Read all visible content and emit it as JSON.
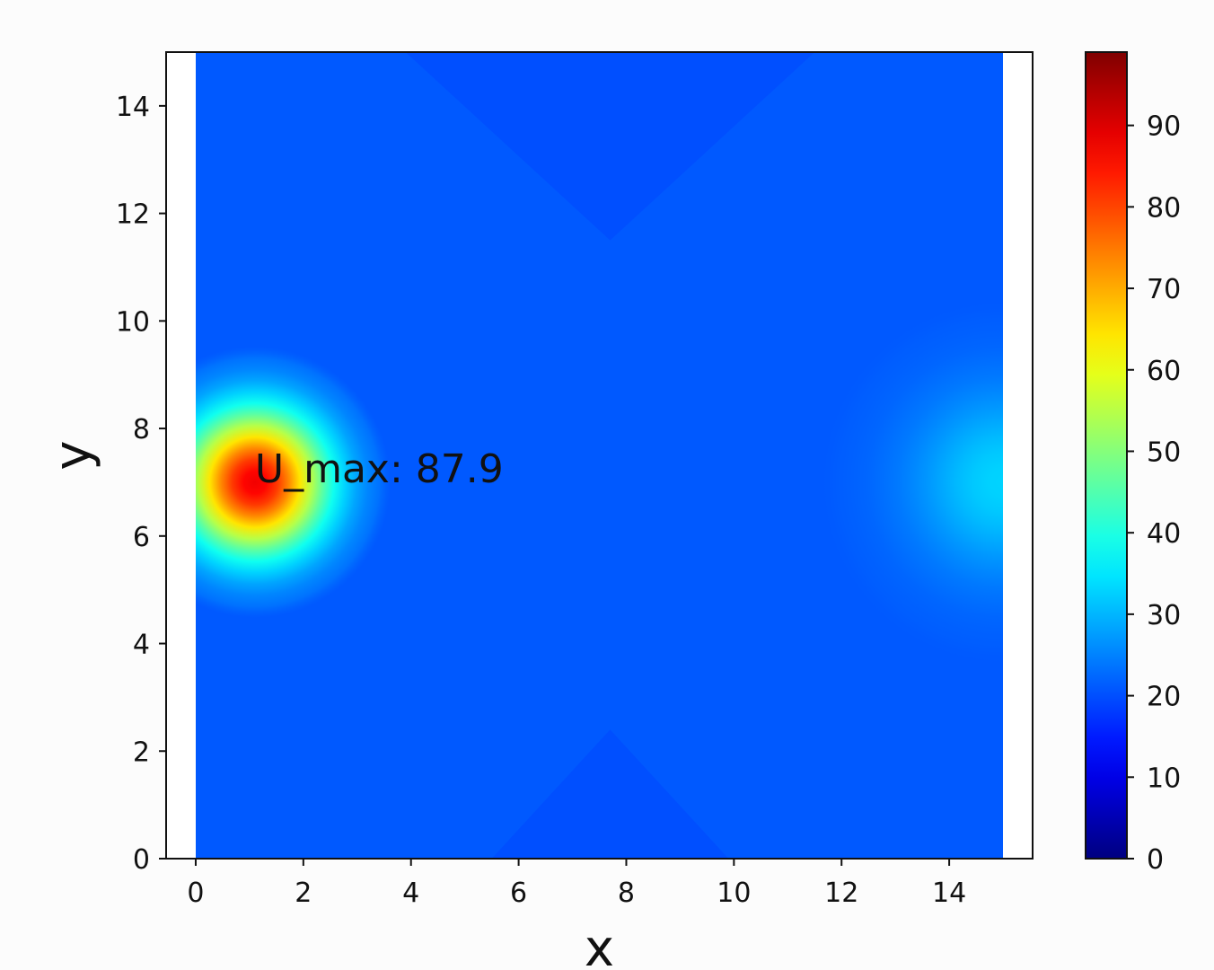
{
  "chart_data": {
    "type": "heatmap",
    "title": "",
    "xlabel": "x",
    "ylabel": "y",
    "xlim": [
      -0.55,
      15.55
    ],
    "ylim": [
      0,
      15
    ],
    "data_extent": {
      "x": [
        0,
        15
      ],
      "y": [
        0,
        15
      ]
    },
    "xticks": [
      0,
      2,
      4,
      6,
      8,
      10,
      12,
      14
    ],
    "yticks": [
      0,
      2,
      4,
      6,
      8,
      10,
      12,
      14
    ],
    "colormap": "jet",
    "colorbar": {
      "range": [
        0,
        99
      ],
      "ticks": [
        0,
        10,
        20,
        30,
        40,
        50,
        60,
        70,
        80,
        90
      ]
    },
    "field": {
      "background_value": 21,
      "hotspots": [
        {
          "x": 1.1,
          "y": 7.0,
          "peak": 87.9,
          "spread": 0.9
        },
        {
          "x": 15.0,
          "y": 7.0,
          "peak": 33,
          "spread": 1.2
        }
      ],
      "regions": [
        {
          "shape": "triangle-down",
          "apex": [
            7.7,
            11.5
          ],
          "base_y": 15,
          "half_width": 3.8,
          "value": 20
        },
        {
          "shape": "triangle-up",
          "apex": [
            7.7,
            2.4
          ],
          "base_y": 0,
          "half_width": 2.2,
          "value": 20
        }
      ]
    },
    "annotations": [
      {
        "text": "U_max: 87.9",
        "x": 1.1,
        "y": 7.0
      }
    ],
    "grid": false,
    "legend": "colorbar-right"
  }
}
